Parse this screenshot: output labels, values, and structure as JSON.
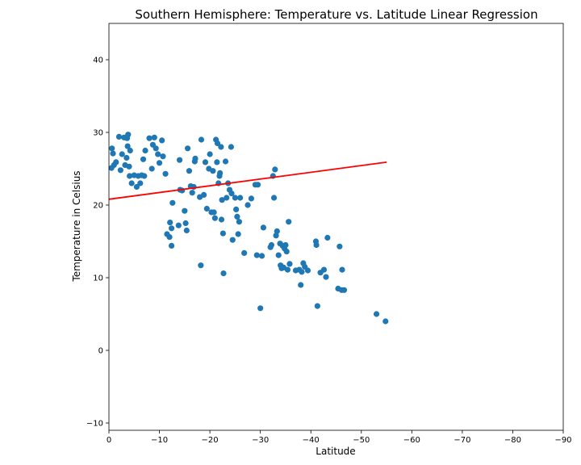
{
  "chart_data": {
    "type": "scatter",
    "title": "Southern Hemisphere: Temperature vs. Latitude Linear Regression",
    "xlabel": "Latitude",
    "ylabel": "Temperature in Celsius",
    "xlim": [
      0,
      -90
    ],
    "ylim": [
      -11,
      45
    ],
    "xticks": [
      0,
      -10,
      -20,
      -30,
      -40,
      -50,
      -60,
      -70,
      -80,
      -90
    ],
    "yticks": [
      -10,
      0,
      10,
      20,
      30,
      40
    ],
    "grid": false,
    "colors": {
      "points": "#1f77b4",
      "regression": "#ff0000"
    },
    "regression": {
      "x": [
        0,
        -55
      ],
      "y": [
        20.8,
        25.9
      ]
    },
    "points": [
      [
        -0.5,
        25.1
      ],
      [
        -0.6,
        27.8
      ],
      [
        -0.8,
        27.1
      ],
      [
        -1,
        25.5
      ],
      [
        -1.4,
        25.9
      ],
      [
        -2,
        29.4
      ],
      [
        -2.3,
        24.8
      ],
      [
        -2.6,
        27.0
      ],
      [
        -3,
        29.3
      ],
      [
        -3.2,
        25.5
      ],
      [
        -3.5,
        26.5
      ],
      [
        -3.6,
        29.2
      ],
      [
        -3.7,
        28.1
      ],
      [
        -3.8,
        29.7
      ],
      [
        -4,
        25.3
      ],
      [
        -4.1,
        24.0
      ],
      [
        -4.2,
        27.5
      ],
      [
        -4.5,
        23.0
      ],
      [
        -5,
        24.1
      ],
      [
        -5.5,
        22.5
      ],
      [
        -5.8,
        24.0
      ],
      [
        -6.2,
        23.0
      ],
      [
        -6.5,
        24.1
      ],
      [
        -6.8,
        26.3
      ],
      [
        -7,
        24.0
      ],
      [
        -7.2,
        27.5
      ],
      [
        -8,
        29.2
      ],
      [
        -8.5,
        25.0
      ],
      [
        -8.7,
        28.3
      ],
      [
        -9,
        29.3
      ],
      [
        -9.3,
        27.8
      ],
      [
        -9.7,
        27.0
      ],
      [
        -10,
        25.8
      ],
      [
        -10.5,
        28.9
      ],
      [
        -10.7,
        26.7
      ],
      [
        -11.2,
        24.3
      ],
      [
        -11.5,
        16.0
      ],
      [
        -12,
        15.6
      ],
      [
        -12.1,
        17.6
      ],
      [
        -12.4,
        14.4
      ],
      [
        -12.4,
        16.8
      ],
      [
        -12.6,
        20.3
      ],
      [
        -13.8,
        17.2
      ],
      [
        -14,
        26.2
      ],
      [
        -14.1,
        22.1
      ],
      [
        -14.5,
        22.0
      ],
      [
        -15,
        19.2
      ],
      [
        -15.2,
        17.5
      ],
      [
        -15.4,
        16.5
      ],
      [
        -15.6,
        27.8
      ],
      [
        -15.9,
        24.7
      ],
      [
        -16.2,
        22.6
      ],
      [
        -16.5,
        21.7
      ],
      [
        -16.8,
        22.5
      ],
      [
        -17,
        26.0
      ],
      [
        -17.1,
        26.4
      ],
      [
        -18,
        21.1
      ],
      [
        -18.2,
        11.7
      ],
      [
        -18.3,
        29.0
      ],
      [
        -18.8,
        21.4
      ],
      [
        -19.1,
        25.9
      ],
      [
        -19.4,
        19.5
      ],
      [
        -19.8,
        25.0
      ],
      [
        -20,
        27.0
      ],
      [
        -20.3,
        19.0
      ],
      [
        -20.6,
        24.7
      ],
      [
        -20.8,
        19.0
      ],
      [
        -21,
        18.2
      ],
      [
        -21.2,
        29.0
      ],
      [
        -21.4,
        25.9
      ],
      [
        -21.5,
        28.5
      ],
      [
        -21.7,
        23.0
      ],
      [
        -21.9,
        24.0
      ],
      [
        -22,
        24.4
      ],
      [
        -22.2,
        28.0
      ],
      [
        -22.3,
        18.0
      ],
      [
        -22.4,
        20.7
      ],
      [
        -22.6,
        16.1
      ],
      [
        -22.7,
        10.6
      ],
      [
        -23.1,
        26.0
      ],
      [
        -23.3,
        21.0
      ],
      [
        -23.6,
        23.0
      ],
      [
        -23.9,
        22.1
      ],
      [
        -24.2,
        28.0
      ],
      [
        -24.3,
        21.6
      ],
      [
        -24.5,
        15.2
      ],
      [
        -25,
        21.0
      ],
      [
        -25.2,
        19.4
      ],
      [
        -25.4,
        18.4
      ],
      [
        -25.6,
        16.0
      ],
      [
        -25.8,
        17.7
      ],
      [
        -26,
        21.0
      ],
      [
        -26.8,
        13.4
      ],
      [
        -27.5,
        20.0
      ],
      [
        -28.2,
        20.9
      ],
      [
        -29,
        22.8
      ],
      [
        -29.3,
        13.1
      ],
      [
        -29.5,
        22.8
      ],
      [
        -30,
        5.8
      ],
      [
        -30.3,
        13.0
      ],
      [
        -30.6,
        16.9
      ],
      [
        -32,
        14.2
      ],
      [
        -32.2,
        14.5
      ],
      [
        -32.5,
        24.0
      ],
      [
        -32.7,
        21.0
      ],
      [
        -32.9,
        24.9
      ],
      [
        -33.1,
        15.8
      ],
      [
        -33.3,
        16.4
      ],
      [
        -33.6,
        13.1
      ],
      [
        -33.9,
        14.7
      ],
      [
        -34,
        11.7
      ],
      [
        -34.2,
        11.3
      ],
      [
        -34.4,
        14.4
      ],
      [
        -34.6,
        11.4
      ],
      [
        -34.8,
        14.0
      ],
      [
        -35,
        14.5
      ],
      [
        -35.2,
        13.6
      ],
      [
        -35.4,
        11.1
      ],
      [
        -35.6,
        17.7
      ],
      [
        -35.8,
        11.9
      ],
      [
        -37,
        11.0
      ],
      [
        -37.7,
        11.1
      ],
      [
        -38,
        9.0
      ],
      [
        -38.2,
        10.8
      ],
      [
        -38.5,
        12.0
      ],
      [
        -38.8,
        11.5
      ],
      [
        -39.4,
        11.0
      ],
      [
        -41,
        15.0
      ],
      [
        -41.1,
        14.5
      ],
      [
        -41.3,
        6.1
      ],
      [
        -41.9,
        10.7
      ],
      [
        -42.6,
        11.1
      ],
      [
        -43,
        10.1
      ],
      [
        -43.3,
        15.5
      ],
      [
        -45.4,
        8.5
      ],
      [
        -45.7,
        14.3
      ],
      [
        -46.1,
        8.3
      ],
      [
        -46.2,
        11.1
      ],
      [
        -46.6,
        8.3
      ],
      [
        -53,
        5.0
      ],
      [
        -54.8,
        4.0
      ]
    ]
  }
}
